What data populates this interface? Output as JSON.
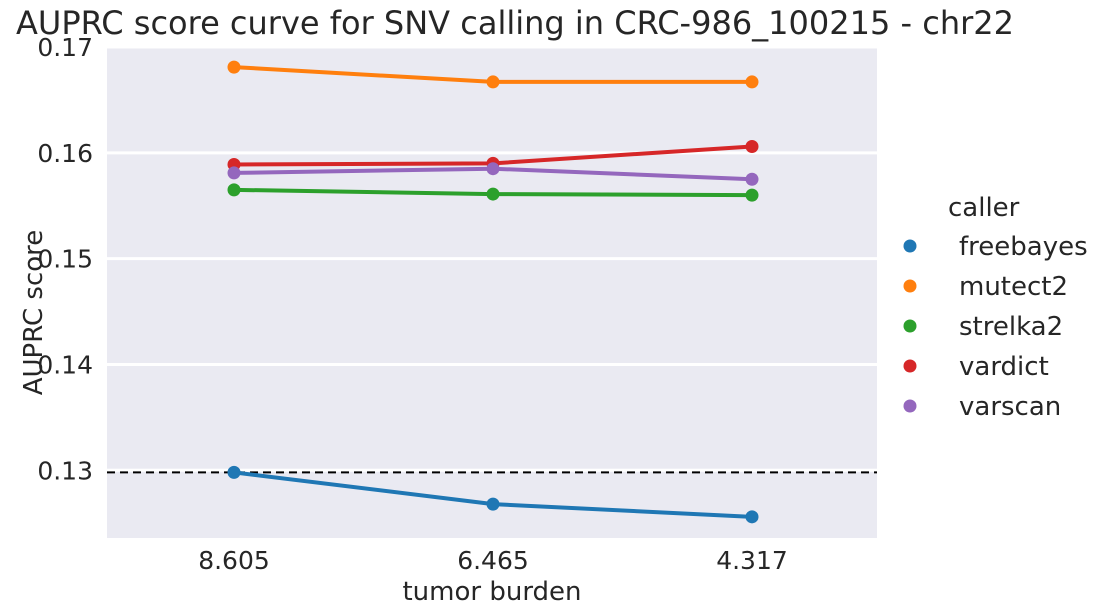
{
  "chart_data": {
    "type": "line",
    "title": "AUPRC score curve for SNV calling in CRC-986_100215 - chr22",
    "xlabel": "tumor burden",
    "ylabel": "AUPRC score",
    "categories": [
      "8.605",
      "6.465",
      "4.317"
    ],
    "yticks": [
      "0.13",
      "0.14",
      "0.15",
      "0.16",
      "0.17"
    ],
    "ylim": [
      0.1236,
      0.17
    ],
    "reference_line": {
      "y": 0.1298,
      "style": "dashed",
      "color": "#000000"
    },
    "grid": true,
    "legend": {
      "title": "caller",
      "placement": "right"
    },
    "series": [
      {
        "name": "freebayes",
        "color": "#1f77b4",
        "values": [
          0.1298,
          0.1268,
          0.1256
        ]
      },
      {
        "name": "mutect2",
        "color": "#ff7f0e",
        "values": [
          0.1681,
          0.1667,
          0.1667
        ]
      },
      {
        "name": "strelka2",
        "color": "#2ca02c",
        "values": [
          0.1565,
          0.1561,
          0.156
        ]
      },
      {
        "name": "vardict",
        "color": "#d62728",
        "values": [
          0.1589,
          0.159,
          0.1606
        ]
      },
      {
        "name": "varscan",
        "color": "#9467bd",
        "values": [
          0.1581,
          0.1585,
          0.1575
        ]
      }
    ]
  },
  "colors": {
    "plot_background": "#eaeaf2",
    "grid": "#ffffff"
  }
}
